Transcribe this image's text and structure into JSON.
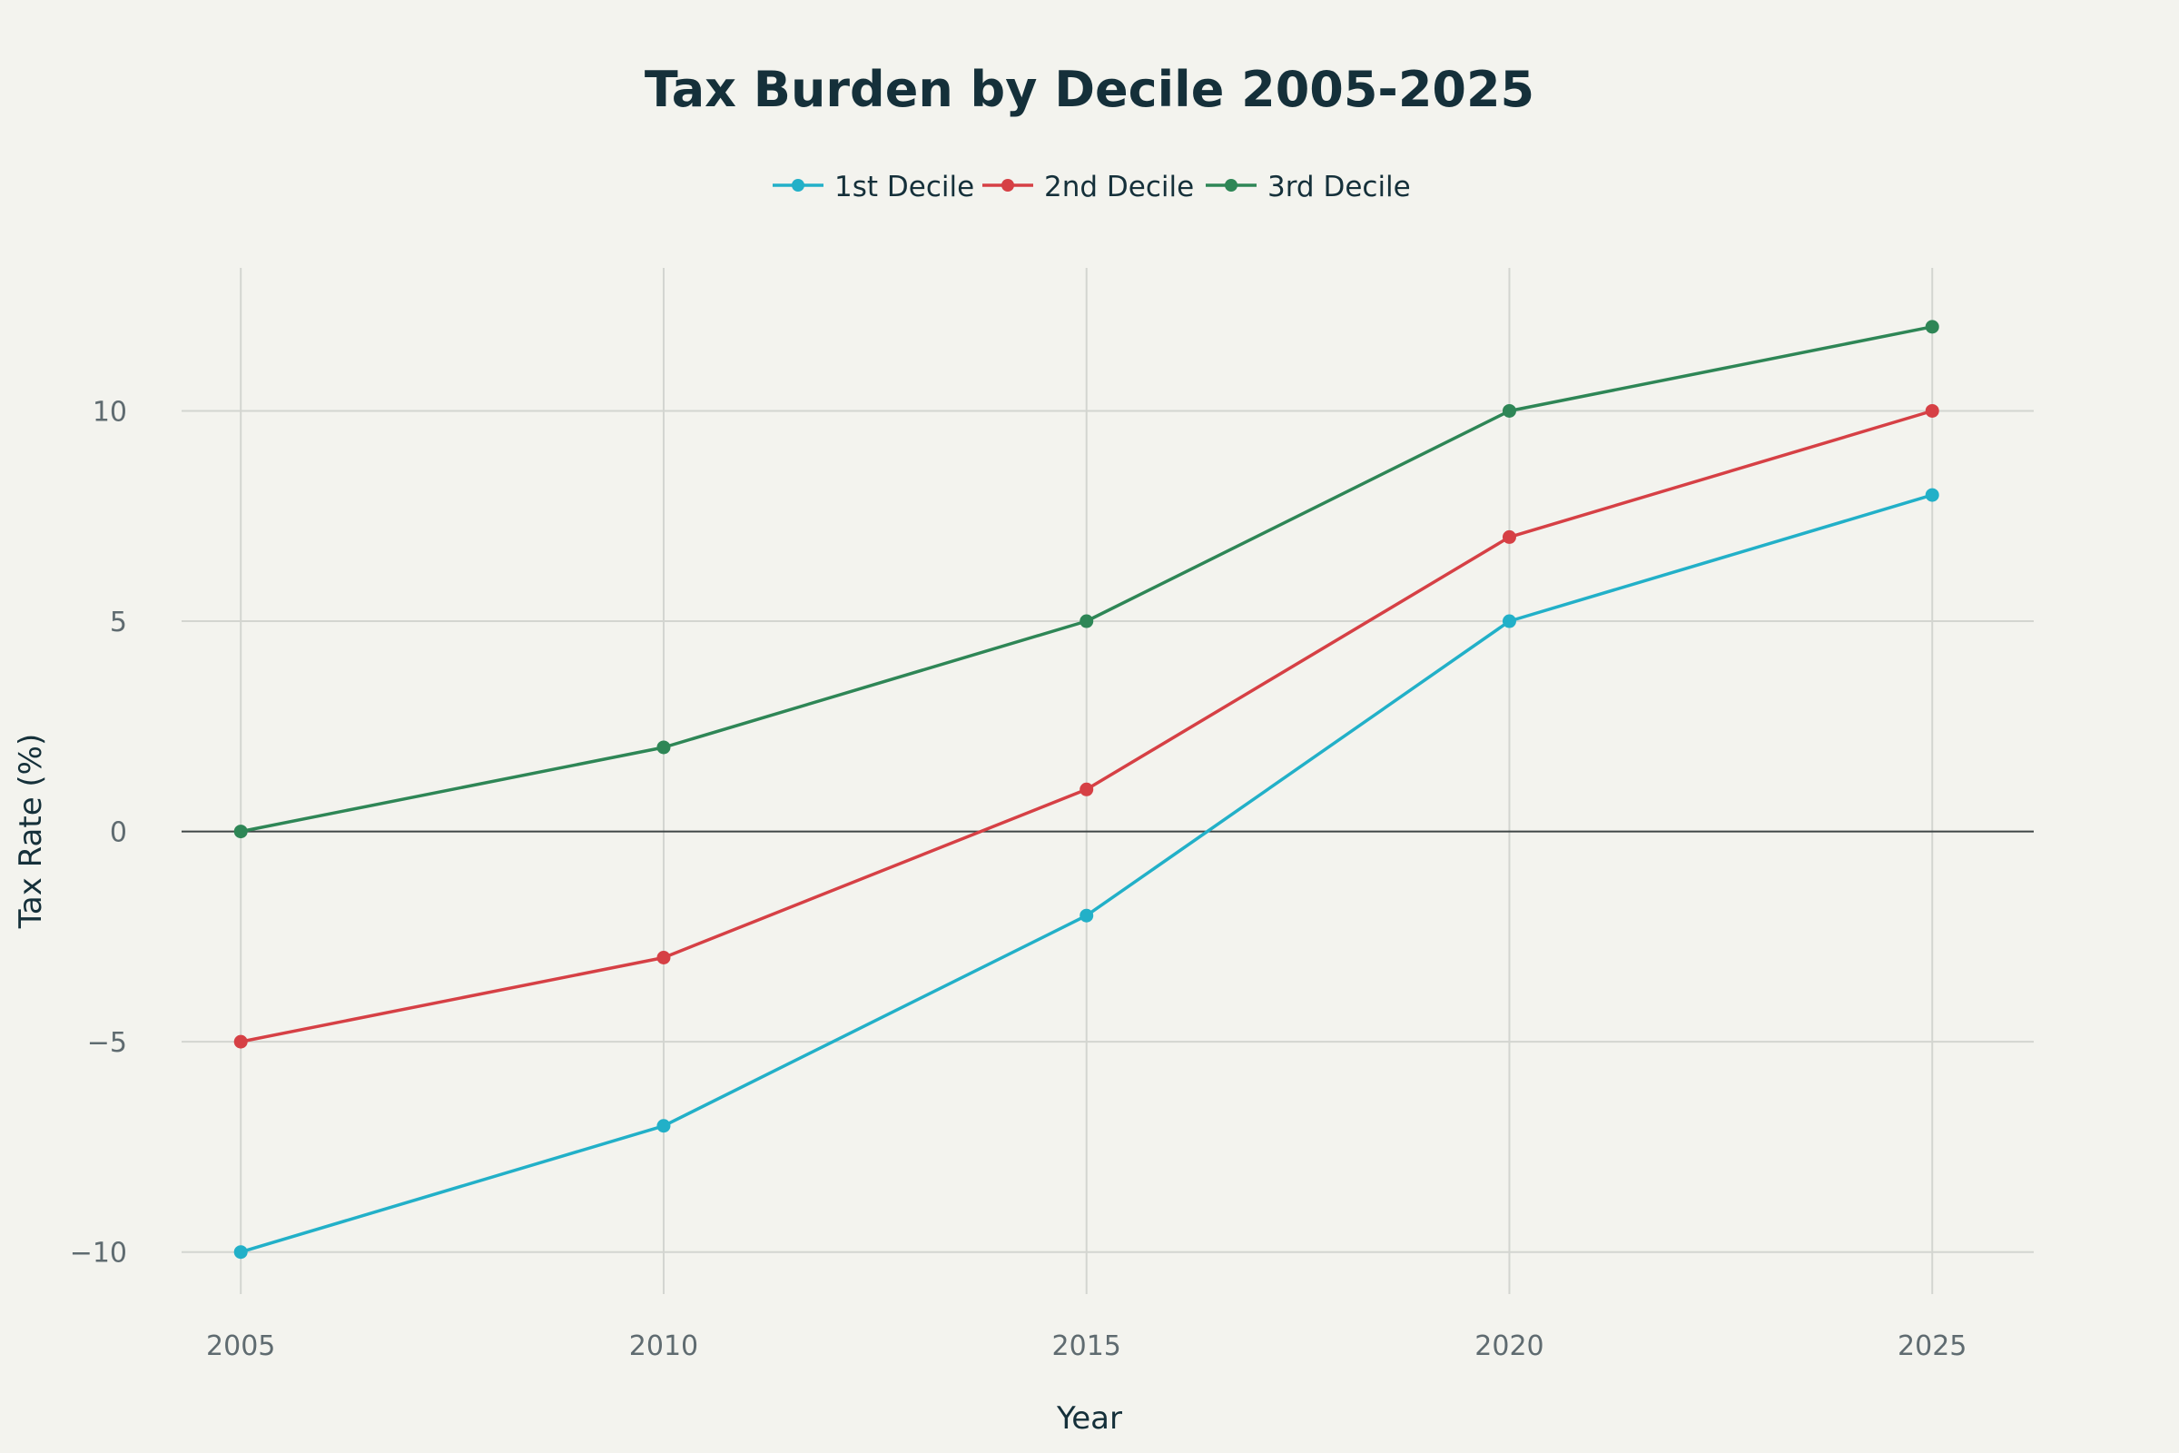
{
  "chart_data": {
    "type": "line",
    "title": "Tax Burden by Decile 2005-2025",
    "xlabel": "Year",
    "ylabel": "Tax Rate (%)",
    "x": [
      2005,
      2010,
      2015,
      2020,
      2025
    ],
    "x_tick_labels": [
      "2005",
      "2010",
      "2015",
      "2020",
      "2025"
    ],
    "y_ticks": [
      -10,
      -5,
      0,
      5,
      10
    ],
    "y_tick_labels": [
      "−10",
      "−5",
      "0",
      "5",
      "10"
    ],
    "xlim": [
      2004.3,
      2026.2
    ],
    "ylim": [
      -11,
      13.4
    ],
    "grid": true,
    "legend_position": "top-center",
    "series": [
      {
        "name": "1st Decile",
        "color": "#22b0c8",
        "values": [
          -10,
          -7,
          -2,
          5,
          8
        ]
      },
      {
        "name": "2nd Decile",
        "color": "#d64045",
        "values": [
          -5,
          -3,
          1,
          7,
          10
        ]
      },
      {
        "name": "3rd Decile",
        "color": "#2e8656",
        "values": [
          0,
          2,
          5,
          10,
          12
        ]
      }
    ]
  }
}
